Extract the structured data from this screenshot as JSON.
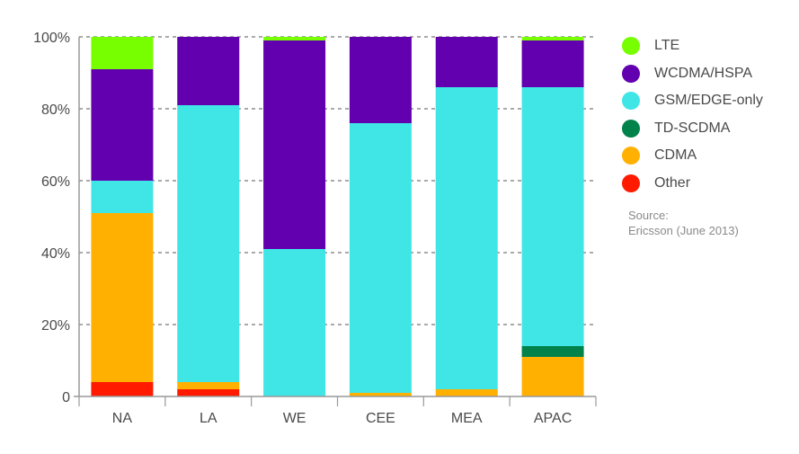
{
  "chart_data": {
    "type": "bar",
    "stacked": true,
    "title": "",
    "xlabel": "",
    "ylabel": "",
    "ylim": [
      0,
      100
    ],
    "yticks": [
      0,
      20,
      40,
      60,
      80,
      100
    ],
    "ytick_labels": [
      "0",
      "20%",
      "40%",
      "60%",
      "80%",
      "100%"
    ],
    "grid": "horizontal dashed",
    "legend_position": "right",
    "categories": [
      "NA",
      "LA",
      "WE",
      "CEE",
      "MEA",
      "APAC"
    ],
    "series": [
      {
        "name": "Other",
        "color": "#ff1a00",
        "values": [
          4,
          2,
          0,
          0,
          0,
          0
        ]
      },
      {
        "name": "CDMA",
        "color": "#ffb000",
        "values": [
          47,
          2,
          0,
          1,
          2,
          11
        ]
      },
      {
        "name": "TD-SCDMA",
        "color": "#00824a",
        "values": [
          0,
          0,
          0,
          0,
          0,
          3
        ]
      },
      {
        "name": "GSM/EDGE-only",
        "color": "#40e6e6",
        "values": [
          9,
          77,
          41,
          75,
          84,
          72
        ]
      },
      {
        "name": "WCDMA/HSPA",
        "color": "#6200b0",
        "values": [
          31,
          19,
          58,
          24,
          14,
          13
        ]
      },
      {
        "name": "LTE",
        "color": "#77ff00",
        "values": [
          9,
          0,
          1,
          0,
          0,
          1
        ]
      }
    ],
    "legend_order": [
      "LTE",
      "WCDMA/HSPA",
      "GSM/EDGE-only",
      "TD-SCDMA",
      "CDMA",
      "Other"
    ],
    "source_line1": "Source:",
    "source_line2": "Ericsson (June 2013)"
  }
}
